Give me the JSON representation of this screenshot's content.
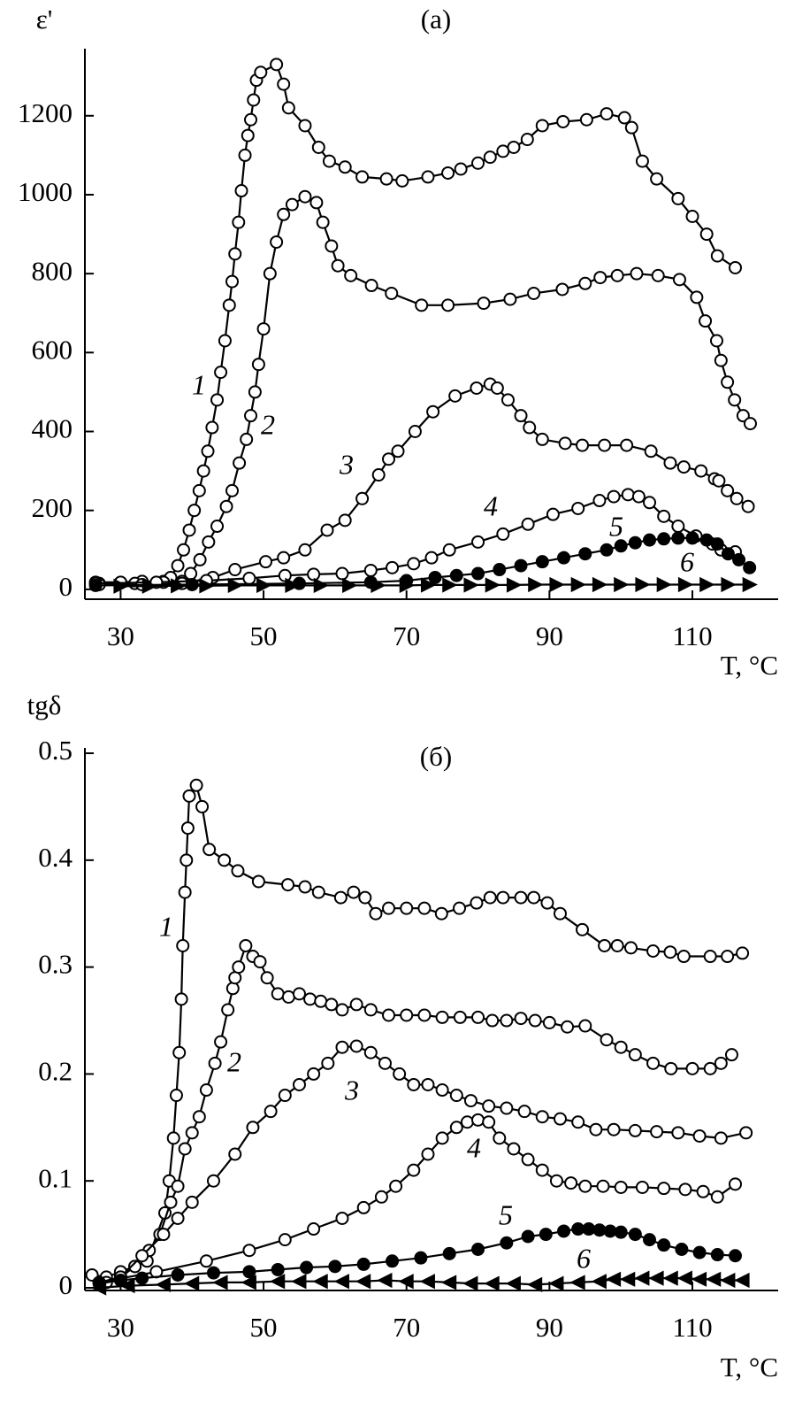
{
  "chart_data": [
    {
      "type": "line",
      "title": "(a)",
      "ylabel": "ε'",
      "xlabel": "T, °C",
      "xlim": [
        25,
        122
      ],
      "ylim": [
        -25,
        1370
      ],
      "xticks": [
        30,
        50,
        70,
        90,
        110
      ],
      "yticks": [
        0,
        200,
        400,
        600,
        800,
        1000,
        1200
      ],
      "series": [
        {
          "name": "1",
          "marker": "open-circle",
          "color": "#000000",
          "x": [
            26.5,
            30,
            33,
            36,
            37,
            38,
            38.8,
            39.6,
            40.3,
            41,
            41.6,
            42.2,
            42.8,
            43.5,
            44,
            44.6,
            45.2,
            45.6,
            46,
            46.5,
            46.9,
            47.4,
            47.8,
            48.2,
            48.6,
            49,
            49.6,
            51.8,
            52.8,
            53.5,
            55.8,
            57.7,
            59.2,
            61.4,
            63.8,
            67.2,
            69.4,
            73,
            75.8,
            77.6,
            80,
            81.7,
            83.5,
            85,
            86.9,
            89,
            91.9,
            95.2,
            98,
            100.5,
            101.5,
            103,
            105,
            108,
            110,
            112,
            113.5,
            116
          ],
          "values": [
            18,
            18,
            20,
            20,
            30,
            60,
            100,
            150,
            200,
            250,
            300,
            350,
            410,
            480,
            550,
            630,
            720,
            780,
            850,
            930,
            1010,
            1100,
            1150,
            1190,
            1240,
            1290,
            1310,
            1330,
            1280,
            1220,
            1175,
            1120,
            1085,
            1070,
            1045,
            1040,
            1035,
            1045,
            1055,
            1065,
            1080,
            1095,
            1110,
            1120,
            1140,
            1175,
            1185,
            1190,
            1205,
            1195,
            1170,
            1085,
            1040,
            990,
            945,
            900,
            845,
            815
          ]
        },
        {
          "name": "2",
          "marker": "open-circle",
          "color": "#000000",
          "x": [
            27,
            32,
            36,
            38.6,
            39.8,
            41.1,
            42.3,
            43.5,
            44.8,
            45.6,
            46.6,
            47.6,
            48.2,
            48.8,
            49.3,
            50,
            50.9,
            51.8,
            52.8,
            54,
            55.8,
            57.4,
            58.3,
            59.5,
            60.4,
            62.2,
            65.1,
            67.9,
            72.1,
            75.8,
            80.8,
            84.5,
            87.8,
            91.8,
            95,
            97.1,
            99.5,
            102.2,
            105.2,
            108.2,
            110.6,
            111.8,
            113.4,
            114,
            114.9,
            115.9,
            117.1,
            118.1
          ],
          "values": [
            15,
            15,
            18,
            20,
            40,
            75,
            120,
            160,
            210,
            250,
            320,
            380,
            440,
            500,
            570,
            660,
            800,
            880,
            950,
            975,
            995,
            980,
            930,
            870,
            820,
            795,
            770,
            750,
            720,
            720,
            725,
            735,
            750,
            760,
            775,
            790,
            795,
            800,
            795,
            785,
            740,
            680,
            630,
            580,
            525,
            480,
            440,
            420
          ]
        },
        {
          "name": "3",
          "marker": "open-circle",
          "color": "#000000",
          "x": [
            27,
            33,
            38.6,
            42.9,
            46,
            50.3,
            52.8,
            55.8,
            58.9,
            61.4,
            63.8,
            66.1,
            67.5,
            68.8,
            71.2,
            73.7,
            76.8,
            79.8,
            81.7,
            82.7,
            84.2,
            86,
            87.2,
            89,
            92.2,
            94.6,
            97.7,
            100.8,
            104.2,
            106.9,
            108.8,
            111.2,
            113.1,
            113.7,
            114.9,
            116.2,
            117.8
          ],
          "values": [
            12,
            12,
            15,
            30,
            50,
            70,
            80,
            100,
            150,
            175,
            230,
            290,
            330,
            350,
            400,
            450,
            490,
            510,
            520,
            510,
            480,
            440,
            410,
            380,
            370,
            365,
            365,
            365,
            350,
            320,
            310,
            300,
            280,
            275,
            250,
            230,
            210
          ]
        },
        {
          "name": "4",
          "marker": "open-circle",
          "color": "#000000",
          "x": [
            26.5,
            35,
            42,
            48,
            53,
            57,
            61,
            65,
            68,
            71,
            73.5,
            76,
            80,
            83.5,
            87,
            90.5,
            94,
            97,
            99,
            101,
            102.5,
            104,
            106,
            108,
            110.5,
            112.8,
            114,
            116
          ],
          "values": [
            15,
            18,
            22,
            28,
            35,
            38,
            40,
            48,
            55,
            65,
            80,
            100,
            120,
            140,
            165,
            190,
            205,
            225,
            235,
            240,
            235,
            220,
            185,
            160,
            135,
            115,
            100,
            95
          ]
        },
        {
          "name": "5",
          "marker": "filled-circle",
          "color": "#000000",
          "x": [
            26.5,
            40,
            55,
            65,
            70,
            74,
            77,
            80,
            83,
            86,
            89,
            92,
            95,
            98,
            100,
            102,
            104,
            106,
            108,
            110,
            112,
            113.5,
            115,
            116.5,
            118
          ],
          "values": [
            10,
            12,
            15,
            18,
            22,
            30,
            35,
            40,
            50,
            60,
            70,
            80,
            90,
            100,
            110,
            118,
            125,
            128,
            130,
            130,
            125,
            115,
            90,
            75,
            55
          ]
        },
        {
          "name": "6",
          "marker": "triangle-right",
          "color": "#000000",
          "x": [
            30,
            34,
            38,
            42,
            46,
            50,
            54,
            58,
            62,
            66,
            70,
            73,
            76,
            79,
            82,
            85,
            88,
            91,
            94,
            97,
            100,
            103,
            106,
            109,
            112,
            115,
            118
          ],
          "values": [
            8,
            8,
            9,
            9,
            10,
            10,
            10,
            10,
            10,
            10,
            10,
            11,
            11,
            11,
            11,
            11,
            12,
            12,
            12,
            12,
            12,
            12,
            12,
            12,
            12,
            12,
            12
          ]
        }
      ]
    },
    {
      "type": "line",
      "title": "(б)",
      "ylabel": "tgδ",
      "xlabel": "T, °C",
      "xlim": [
        25,
        122
      ],
      "ylim": [
        -0.0025,
        0.505
      ],
      "xticks": [
        30,
        50,
        70,
        90,
        110
      ],
      "yticks": [
        0,
        0.1,
        0.2,
        0.3,
        0.4,
        0.5
      ],
      "series": [
        {
          "name": "1",
          "marker": "open-circle",
          "color": "#000000",
          "x": [
            26,
            28,
            30,
            32,
            33.7,
            36.2,
            36.8,
            37.4,
            37.8,
            38.2,
            38.5,
            38.7,
            39,
            39.2,
            39.4,
            39.6,
            40.6,
            41.4,
            42.4,
            44.5,
            46.4,
            49.3,
            53.4,
            55.8,
            57.7,
            60.8,
            62.6,
            64.2,
            65.7,
            67.5,
            70,
            72.5,
            74.9,
            77.4,
            79.8,
            81.7,
            83.5,
            86,
            87.8,
            89.7,
            91.5,
            94.6,
            97.7,
            99.5,
            101.4,
            104.5,
            106.9,
            108.8,
            112.5,
            114.9,
            117
          ],
          "values": [
            0.012,
            0.01,
            0.015,
            0.02,
            0.025,
            0.07,
            0.1,
            0.14,
            0.18,
            0.22,
            0.27,
            0.32,
            0.37,
            0.4,
            0.43,
            0.46,
            0.47,
            0.45,
            0.41,
            0.4,
            0.39,
            0.38,
            0.377,
            0.375,
            0.37,
            0.365,
            0.37,
            0.365,
            0.35,
            0.355,
            0.355,
            0.355,
            0.35,
            0.355,
            0.36,
            0.365,
            0.365,
            0.365,
            0.365,
            0.36,
            0.35,
            0.335,
            0.32,
            0.32,
            0.318,
            0.315,
            0.314,
            0.31,
            0.31,
            0.31,
            0.313
          ]
        },
        {
          "name": "2",
          "marker": "open-circle",
          "color": "#000000",
          "x": [
            28,
            30,
            32,
            34,
            35.5,
            37,
            38,
            39,
            40,
            41,
            42,
            43.2,
            44,
            45,
            45.7,
            46,
            46.5,
            47.5,
            48.5,
            49.5,
            50.5,
            52,
            53.5,
            55,
            56.5,
            58,
            59.5,
            61,
            63,
            65,
            67.5,
            70,
            72.5,
            75,
            77.5,
            80,
            82,
            84,
            86,
            88,
            90,
            92.5,
            95,
            98,
            100,
            102,
            104.5,
            107,
            110,
            112.5,
            114,
            115.5
          ],
          "values": [
            0.005,
            0.01,
            0.02,
            0.035,
            0.05,
            0.08,
            0.095,
            0.13,
            0.145,
            0.16,
            0.185,
            0.21,
            0.23,
            0.26,
            0.28,
            0.29,
            0.3,
            0.32,
            0.31,
            0.305,
            0.29,
            0.275,
            0.272,
            0.275,
            0.27,
            0.268,
            0.265,
            0.26,
            0.265,
            0.26,
            0.255,
            0.255,
            0.255,
            0.253,
            0.253,
            0.253,
            0.25,
            0.25,
            0.252,
            0.25,
            0.248,
            0.244,
            0.245,
            0.232,
            0.225,
            0.218,
            0.21,
            0.205,
            0.205,
            0.205,
            0.21,
            0.218
          ]
        },
        {
          "name": "3",
          "marker": "open-circle",
          "color": "#000000",
          "x": [
            27,
            30,
            33,
            36,
            38,
            40,
            43,
            46,
            48.5,
            51,
            53,
            55,
            57,
            59,
            61,
            63,
            65,
            67,
            69,
            71,
            73,
            75,
            77,
            79,
            81.5,
            84,
            86.5,
            89,
            91.5,
            94,
            96.5,
            99,
            102,
            105,
            108,
            111,
            114,
            117.5
          ],
          "values": [
            0.005,
            0.01,
            0.03,
            0.05,
            0.065,
            0.08,
            0.1,
            0.125,
            0.15,
            0.165,
            0.18,
            0.19,
            0.2,
            0.21,
            0.225,
            0.226,
            0.22,
            0.21,
            0.2,
            0.19,
            0.19,
            0.185,
            0.18,
            0.175,
            0.17,
            0.168,
            0.165,
            0.16,
            0.158,
            0.155,
            0.148,
            0.148,
            0.147,
            0.146,
            0.145,
            0.142,
            0.14,
            0.145
          ]
        },
        {
          "name": "4",
          "marker": "open-circle",
          "color": "#000000",
          "x": [
            27,
            35,
            42,
            48,
            53,
            57,
            61,
            64,
            66.5,
            68.5,
            71,
            73,
            75,
            77,
            78.5,
            80,
            81.5,
            83,
            85,
            87,
            89,
            91,
            93,
            95,
            97.5,
            100,
            103,
            106,
            109,
            111.5,
            113.5,
            116
          ],
          "values": [
            0.005,
            0.015,
            0.025,
            0.035,
            0.045,
            0.055,
            0.065,
            0.075,
            0.085,
            0.095,
            0.11,
            0.125,
            0.14,
            0.15,
            0.155,
            0.157,
            0.155,
            0.14,
            0.13,
            0.12,
            0.11,
            0.1,
            0.098,
            0.095,
            0.095,
            0.094,
            0.094,
            0.093,
            0.092,
            0.09,
            0.085,
            0.097
          ]
        },
        {
          "name": "5",
          "marker": "filled-circle",
          "color": "#000000",
          "x": [
            27,
            30,
            33,
            38,
            43,
            48,
            52,
            56,
            60,
            64,
            68,
            72,
            76,
            80,
            84,
            87,
            89.5,
            92,
            94,
            95.5,
            97,
            98.5,
            100,
            102,
            104,
            106,
            108.5,
            111,
            113.5,
            116
          ],
          "values": [
            0.004,
            0.007,
            0.009,
            0.012,
            0.014,
            0.015,
            0.017,
            0.019,
            0.02,
            0.022,
            0.025,
            0.028,
            0.032,
            0.036,
            0.042,
            0.048,
            0.05,
            0.053,
            0.055,
            0.055,
            0.054,
            0.053,
            0.052,
            0.05,
            0.045,
            0.04,
            0.036,
            0.033,
            0.031,
            0.03
          ]
        },
        {
          "name": "6",
          "marker": "triangle-left",
          "color": "#000000",
          "x": [
            27,
            31,
            36,
            40,
            44,
            48,
            52,
            55,
            58,
            61,
            64,
            67,
            70,
            73,
            76,
            79,
            82,
            85,
            88,
            91,
            94,
            97,
            99,
            101,
            103,
            105,
            107,
            109,
            111,
            113,
            115,
            117
          ],
          "values": [
            0,
            0.002,
            0.003,
            0.004,
            0.005,
            0.005,
            0.006,
            0.006,
            0.006,
            0.006,
            0.006,
            0.007,
            0.006,
            0.006,
            0.005,
            0.004,
            0.004,
            0.004,
            0.003,
            0.004,
            0.005,
            0.006,
            0.008,
            0.008,
            0.009,
            0.009,
            0.009,
            0.009,
            0.008,
            0.008,
            0.007,
            0.007
          ]
        }
      ]
    }
  ]
}
